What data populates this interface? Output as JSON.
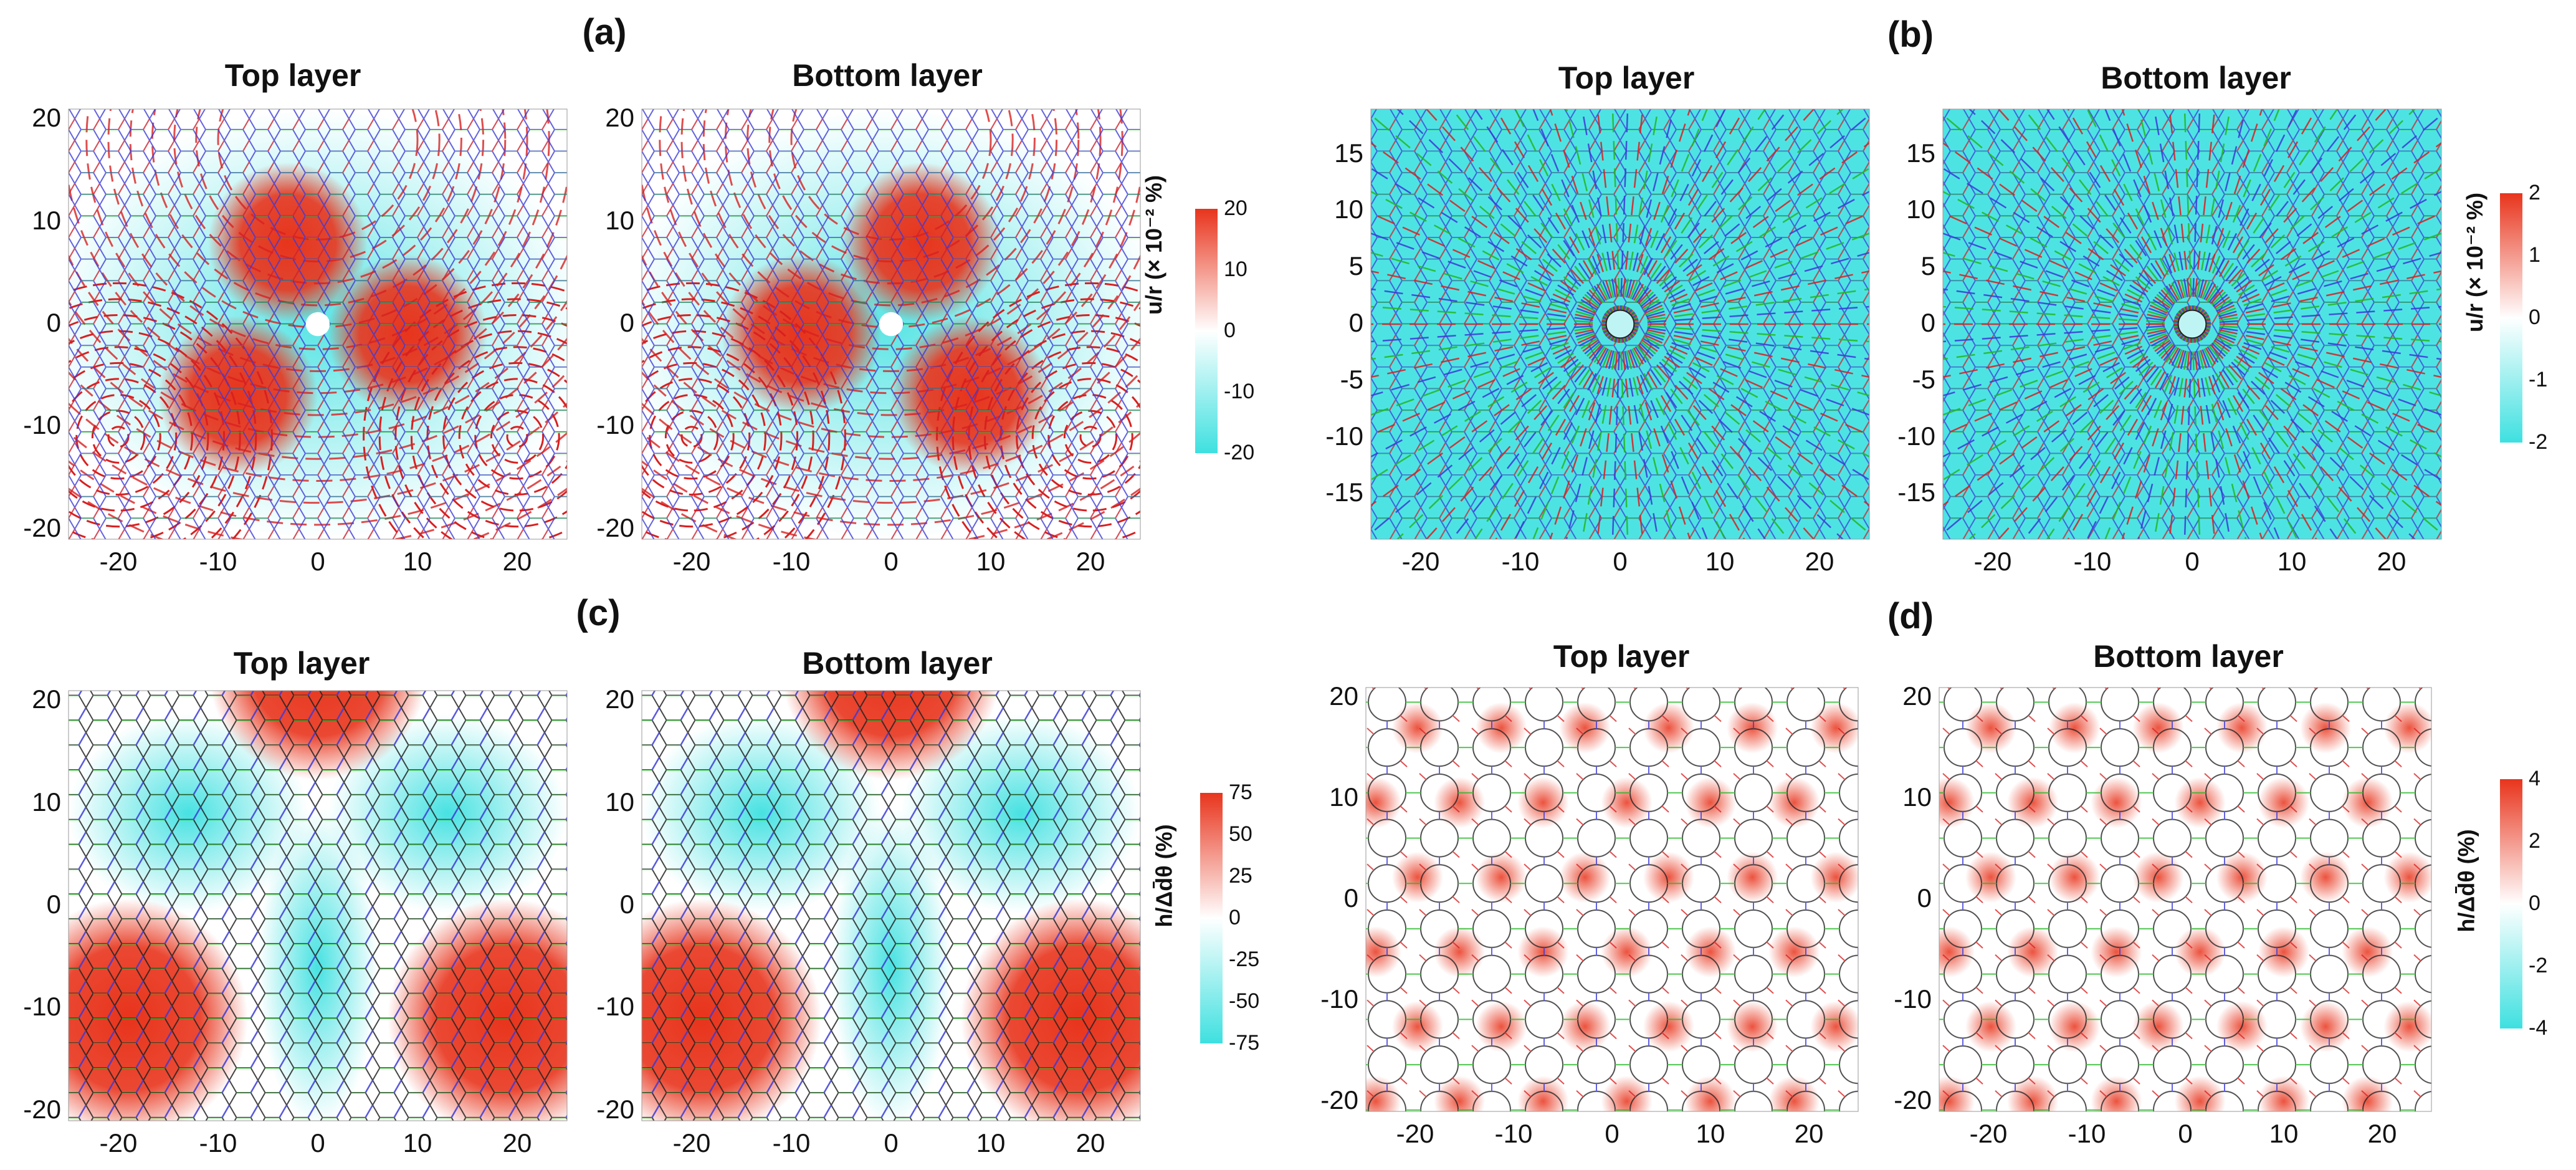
{
  "panel_labels": [
    "(a)",
    "(b)",
    "(c)",
    "(d)"
  ],
  "subplot_titles": {
    "top": "Top layer",
    "bottom": "Bottom layer"
  },
  "colorbar_labels": {
    "a": "u/r (× 10⁻² %)",
    "b": "u/r (× 10⁻² %)",
    "c": "h/Δd̄θ (%)",
    "d": "h/Δd̄θ (%)"
  },
  "colors": {
    "positive": "#e8341c",
    "negative": "#3ee0e0",
    "neutral": "#ffffff",
    "bond_red": "#d82020",
    "bond_green": "#22b822",
    "bond_blue": "#3a3ad8",
    "bond_black": "#222222"
  },
  "chart_data": [
    {
      "panel": "(a)",
      "title": "Top layer",
      "type": "heatmap",
      "xticks": [
        "-20",
        "-10",
        "0",
        "10",
        "20"
      ],
      "yticks": [
        "20",
        "10",
        "0",
        "-10",
        "-20"
      ],
      "xlim": [
        -25,
        25
      ],
      "ylim": [
        -21,
        21
      ],
      "colorbar": {
        "ticks": [
          "20",
          "10",
          "0",
          "-10",
          "-20"
        ],
        "range": [
          -20,
          20
        ]
      }
    },
    {
      "panel": "(a)",
      "title": "Bottom layer",
      "type": "heatmap",
      "xticks": [
        "-20",
        "-10",
        "0",
        "10",
        "20"
      ],
      "yticks": [
        "20",
        "10",
        "0",
        "-10",
        "-20"
      ],
      "xlim": [
        -25,
        25
      ],
      "ylim": [
        -21,
        21
      ]
    },
    {
      "panel": "(b)",
      "title": "Top layer",
      "type": "heatmap",
      "xticks": [
        "-20",
        "-10",
        "0",
        "10",
        "20"
      ],
      "yticks": [
        "15",
        "10",
        "5",
        "0",
        "-5",
        "-10",
        "-15"
      ],
      "xlim": [
        -25,
        25
      ],
      "ylim": [
        -19,
        19
      ],
      "colorbar": {
        "ticks": [
          "2",
          "1",
          "0",
          "-1",
          "-2"
        ],
        "range": [
          -2,
          2
        ]
      }
    },
    {
      "panel": "(b)",
      "title": "Bottom layer",
      "type": "heatmap",
      "xticks": [
        "-20",
        "-10",
        "0",
        "10",
        "20"
      ],
      "yticks": [
        "15",
        "10",
        "5",
        "0",
        "-5",
        "-10",
        "-15"
      ],
      "xlim": [
        -25,
        25
      ],
      "ylim": [
        -19,
        19
      ]
    },
    {
      "panel": "(c)",
      "title": "Top layer",
      "type": "heatmap",
      "xticks": [
        "-20",
        "-10",
        "0",
        "10",
        "20"
      ],
      "yticks": [
        "20",
        "10",
        "0",
        "-10",
        "-20"
      ],
      "xlim": [
        -25,
        25
      ],
      "ylim": [
        -21,
        21
      ],
      "colorbar": {
        "ticks": [
          "75",
          "50",
          "25",
          "0",
          "-25",
          "-50",
          "-75"
        ],
        "range": [
          -75,
          75
        ]
      }
    },
    {
      "panel": "(c)",
      "title": "Bottom layer",
      "type": "heatmap",
      "xticks": [
        "-20",
        "-10",
        "0",
        "10",
        "20"
      ],
      "yticks": [
        "20",
        "10",
        "0",
        "-10",
        "-20"
      ],
      "xlim": [
        -25,
        25
      ],
      "ylim": [
        -21,
        21
      ]
    },
    {
      "panel": "(d)",
      "title": "Top layer",
      "type": "heatmap",
      "xticks": [
        "-20",
        "-10",
        "0",
        "10",
        "20"
      ],
      "yticks": [
        "20",
        "10",
        "0",
        "-10",
        "-20"
      ],
      "xlim": [
        -25,
        25
      ],
      "ylim": [
        -21,
        21
      ],
      "colorbar": {
        "ticks": [
          "4",
          "2",
          "0",
          "-2",
          "-4"
        ],
        "range": [
          -4,
          4
        ]
      }
    },
    {
      "panel": "(d)",
      "title": "Bottom layer",
      "type": "heatmap",
      "xticks": [
        "-20",
        "-10",
        "0",
        "10",
        "20"
      ],
      "yticks": [
        "20",
        "10",
        "0",
        "-10",
        "-20"
      ],
      "xlim": [
        -25,
        25
      ],
      "ylim": [
        -21,
        21
      ]
    }
  ]
}
